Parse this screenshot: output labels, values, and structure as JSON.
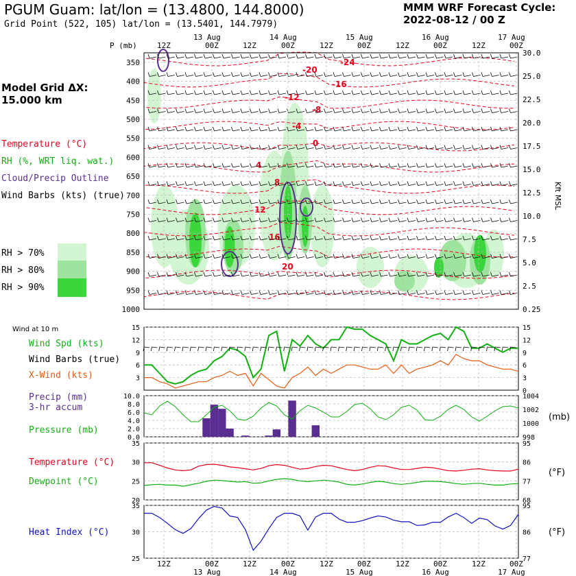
{
  "header": {
    "title": "PGUM Guam:  lat/lon = (13.4800, 144.8000)",
    "subtitle": "Grid Point (522, 105) lat/lon = (13.5401, 144.7979)",
    "cycle_line1": "MMM WRF Forecast Cycle:",
    "cycle_line2": "2022-08-12 / 00  Z"
  },
  "time_axis": {
    "hours": [
      "12Z",
      "00Z",
      "12Z",
      "00Z",
      "12Z",
      "00Z",
      "12Z",
      "00Z",
      "12Z",
      "00Z"
    ],
    "dates": [
      "13 Aug",
      "14 Aug",
      "15 Aug",
      "16 Aug",
      "17 Aug"
    ]
  },
  "legend": {
    "model_grid": "Model Grid ΔX:",
    "grid_km": " 15.000 km",
    "temperature": "Temperature (°C)",
    "rh": "RH (%, WRT liq. wat.)",
    "cloud": "Cloud/Precip Outline",
    "barbs": "Wind Barbs (kts) (true)",
    "rh70": "RH > 70%",
    "rh80": "RH > 80%",
    "rh90": "RH > 90%",
    "wind10": "Wind at 10 m",
    "wspd": "Wind Spd (kts)",
    "wbarbs": "Wind Barbs (true)",
    "xwind": "X-Wind (kts)",
    "precip1": "Precip (mm)",
    "precip2": "3-hr accum",
    "pressure": "Pressure (mb)",
    "temp": "Temperature (°C)",
    "dew": "Dewpoint (°C)",
    "heat": "Heat Index (°C)",
    "mb_unit": "(mb)",
    "f_unit1": "(°F)",
    "f_unit2": "(°F)",
    "kft": "Kft MSL"
  },
  "colors": {
    "temperature": "#e8001c",
    "rh": "#10b010",
    "cloud": "#5a2d91",
    "xwind": "#e85a10",
    "heat": "#1010c8",
    "rh70": "#d2f5d2",
    "rh80": "#9ee39e",
    "rh90": "#3bd63b"
  },
  "chart_data": [
    {
      "type": "heatmap",
      "title": "Pressure-time cross section",
      "ylabel": "P (mb)",
      "y_ticks": [
        "350",
        "400",
        "450",
        "500",
        "550",
        "600",
        "650",
        "700",
        "750",
        "800",
        "850",
        "900",
        "950",
        "1000"
      ],
      "ylim": [
        1000,
        325
      ],
      "right_ticks": [
        "30.0",
        "25.0",
        "22.5",
        "20.0",
        "17.5",
        "15.0",
        "12.5",
        "10.0",
        "7.5",
        "5.0",
        "2.5",
        "0.25"
      ],
      "right_label": "Kft MSL",
      "temperature_labels": [
        "-24",
        "-20",
        "-16",
        "-12",
        "-8",
        "-4",
        "0",
        "4",
        "8",
        "12",
        "16",
        "20"
      ]
    },
    {
      "type": "line",
      "title": "Wind at 10 m",
      "y_ticks": [
        "3",
        "6",
        "9",
        "12",
        "15"
      ],
      "ylim": [
        0,
        15
      ],
      "series": [
        {
          "name": "Wind Spd (kts)",
          "values": [
            6,
            6,
            4,
            2,
            1.5,
            2,
            3.5,
            4.5,
            5,
            7,
            8,
            10,
            9.5,
            8,
            3,
            5,
            13,
            14,
            4.5,
            12,
            10.5,
            13,
            11,
            10,
            12,
            12,
            15,
            14.5,
            14.5,
            13,
            12,
            11,
            7,
            12,
            11,
            11,
            12,
            13,
            13.5,
            12,
            15,
            14,
            10,
            10,
            11,
            10,
            9,
            10,
            10
          ]
        },
        {
          "name": "X-Wind (kts)",
          "values": [
            3,
            3,
            2,
            1.5,
            0.5,
            1,
            1.5,
            2,
            2,
            3,
            3.5,
            4.5,
            3.5,
            4,
            1,
            4,
            2.5,
            1,
            0.5,
            3,
            4,
            5.5,
            3.5,
            5,
            4,
            5,
            6,
            6,
            5.5,
            5,
            5,
            6,
            4,
            6,
            4,
            5,
            5.5,
            6,
            7,
            6,
            8.5,
            7.5,
            7,
            7,
            6,
            5.5,
            5,
            5,
            4.5
          ]
        }
      ]
    },
    {
      "type": "bar",
      "title": "Precip (mm) 3-hr accum",
      "y_ticks": [
        "0.0",
        "2.0",
        "4.0",
        "6.0",
        "8.0",
        "10.0"
      ],
      "ylim": [
        0,
        10
      ],
      "bars": [
        {
          "x": 8,
          "value": 4.5
        },
        {
          "x": 9,
          "value": 7.8
        },
        {
          "x": 10,
          "value": 6.8
        },
        {
          "x": 11,
          "value": 2.0
        },
        {
          "x": 13,
          "value": 0.3
        },
        {
          "x": 16,
          "value": 0.3
        },
        {
          "x": 17,
          "value": 1.8
        },
        {
          "x": 19,
          "value": 8.8
        },
        {
          "x": 22,
          "value": 2.8
        }
      ],
      "pressure_ticks": [
        "998",
        "1000",
        "1002",
        "1004"
      ],
      "pressure_range": [
        998,
        1004
      ],
      "pressure_series": {
        "name": "Pressure (mb)",
        "values": [
          1001.5,
          1001.2,
          1002.5,
          1003.2,
          1002.4,
          1001.2,
          1000.2,
          1000.2,
          1001.2,
          1002.3,
          1002.6,
          1001.8,
          1000.6,
          1000.4,
          1001.0,
          1002.2,
          1003.0,
          1002.5,
          1001.2,
          1000.6,
          1001.8,
          1002.6,
          1002.2,
          1001.6,
          1000.9,
          1000.9,
          1001.7,
          1002.7,
          1002.9,
          1002.1,
          1000.9,
          1000.5,
          1001.2,
          1002.3,
          1002.6,
          1001.9,
          1000.5,
          1000.4,
          1001.0,
          1002.0,
          1002.6,
          1002.0,
          1000.9,
          1000.3,
          1001.0,
          1001.8,
          1002.4,
          1002.5,
          1002.2
        ]
      }
    },
    {
      "type": "line",
      "title": "Temperature / Dewpoint",
      "y_ticks": [
        "20",
        "25",
        "30",
        "35"
      ],
      "ylim": [
        20,
        35
      ],
      "right_ticks": [
        "68",
        "77",
        "86",
        "95"
      ],
      "series": [
        {
          "name": "Temperature (°C)",
          "values": [
            29.8,
            29.8,
            29.1,
            28.4,
            27.9,
            27.7,
            27.9,
            28.9,
            29.3,
            29.4,
            29.1,
            28.7,
            28.5,
            28.2,
            27.9,
            28.3,
            29.0,
            29.3,
            29.1,
            28.6,
            28.1,
            28.3,
            28.8,
            29.1,
            29.0,
            28.5,
            28.0,
            27.7,
            28.0,
            28.6,
            29.0,
            28.9,
            28.4,
            28.0,
            28.0,
            28.3,
            28.6,
            28.5,
            28.1,
            27.7,
            27.6,
            27.8,
            28.1,
            28.2,
            27.9,
            27.7,
            27.6,
            27.6,
            28.1
          ]
        },
        {
          "name": "Dewpoint (°C)",
          "values": [
            23.8,
            24.0,
            24.1,
            23.9,
            23.9,
            23.6,
            24.0,
            24.4,
            24.9,
            25.2,
            25.1,
            24.9,
            24.7,
            24.8,
            24.4,
            24.5,
            25.0,
            25.4,
            25.6,
            25.4,
            25.0,
            24.8,
            25.0,
            25.2,
            25.0,
            24.7,
            24.1,
            23.9,
            24.2,
            24.6,
            24.9,
            24.7,
            24.3,
            24.1,
            24.3,
            24.6,
            24.9,
            24.9,
            24.8,
            24.6,
            24.3,
            24.1,
            24.3,
            24.4,
            24.1,
            23.9,
            23.9,
            24.2,
            24.3
          ]
        }
      ]
    },
    {
      "type": "line",
      "title": "Heat Index",
      "y_ticks": [
        "25",
        "30",
        "35"
      ],
      "ylim": [
        25,
        35
      ],
      "right_ticks": [
        "77",
        "86",
        "95"
      ],
      "series": [
        {
          "name": "Heat Index (°C)",
          "values": [
            33.5,
            33.5,
            32.7,
            31.6,
            30.4,
            29.7,
            30.6,
            32.5,
            34.1,
            34.8,
            34.5,
            33.0,
            32.7,
            30.4,
            26.5,
            28.2,
            30.6,
            32.7,
            33.5,
            33.5,
            33.0,
            30.3,
            32.8,
            33.5,
            33.5,
            32.4,
            31.8,
            31.8,
            32.1,
            32.6,
            33.0,
            32.8,
            32.2,
            31.9,
            31.9,
            31.2,
            31.3,
            31.8,
            31.8,
            32.8,
            33.5,
            32.7,
            31.6,
            32.6,
            32.3,
            31.1,
            30.5,
            31.2,
            33.3
          ]
        }
      ]
    }
  ]
}
